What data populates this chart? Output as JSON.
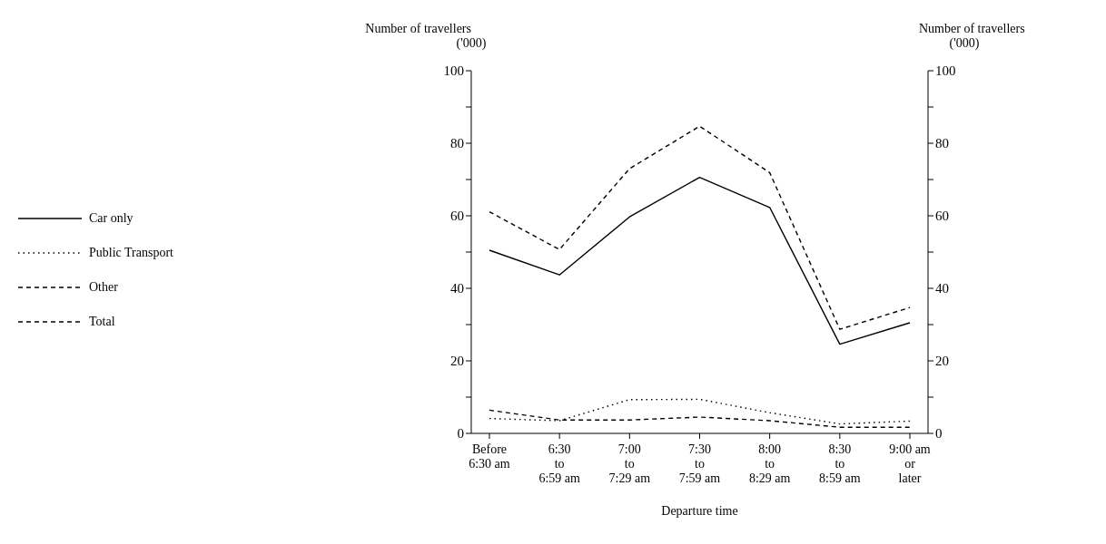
{
  "chart_data": {
    "type": "line",
    "ylabel": "Number of travellers\n('000)",
    "y2label": "Number of travellers\n('000)",
    "xlabel": "Departure time",
    "categories": [
      "Before\n6:30 am",
      "6:30\nto\n6:59 am",
      "7:00\nto\n7:29 am",
      "7:30\nto\n7:59 am",
      "8:00\nto\n8:29 am",
      "8:30\nto\n8:59 am",
      "9:00 am\nor\nlater"
    ],
    "series": [
      {
        "name": "Car only",
        "color": "#000000",
        "line_style": "solid",
        "values": [
          50.5,
          43.7,
          59.7,
          70.6,
          62.3,
          24.6,
          30.5
        ]
      },
      {
        "name": "Public Transport",
        "color": "#000000",
        "line_style": "dotted",
        "values": [
          4.1,
          3.5,
          9.3,
          9.4,
          5.7,
          2.6,
          3.4
        ]
      },
      {
        "name": "Other",
        "color": "#000000",
        "line_style": "dashed",
        "values": [
          6.4,
          3.7,
          3.7,
          4.5,
          3.5,
          1.7,
          1.7
        ]
      },
      {
        "name": "Total",
        "color": "#000000",
        "line_style": "dashed",
        "values": [
          61.1,
          50.7,
          73.0,
          84.7,
          71.9,
          28.7,
          34.7
        ]
      }
    ],
    "ylim": [
      0,
      100
    ],
    "yticks": [
      0,
      {
        "value": 10,
        "label": null
      },
      20,
      {
        "value": 30,
        "label": null
      },
      40,
      {
        "value": 50,
        "label": null
      },
      60,
      {
        "value": 70,
        "label": null
      },
      80,
      {
        "value": 90,
        "label": null
      },
      100
    ],
    "y2lim": [
      0,
      100
    ],
    "y2ticks": [
      0,
      {
        "value": 10,
        "label": null
      },
      20,
      {
        "value": 30,
        "label": null
      },
      40,
      {
        "value": 50,
        "label": null
      },
      60,
      {
        "value": 70,
        "label": null
      },
      80,
      {
        "value": 90,
        "label": null
      },
      100
    ],
    "grid": false,
    "legend": "left",
    "marker": "none"
  }
}
